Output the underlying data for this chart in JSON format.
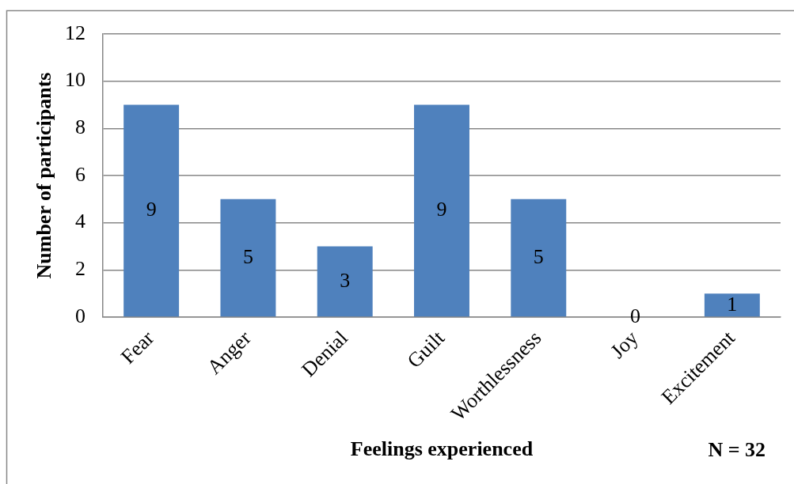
{
  "chart_data": {
    "type": "bar",
    "categories": [
      "Fear",
      "Anger",
      "Denial",
      "Guilt",
      "Worthlessness",
      "Joy",
      "Excitement"
    ],
    "values": [
      9,
      5,
      3,
      9,
      5,
      0,
      1
    ],
    "color": "#4f81bd",
    "xlabel": "Feelings experienced",
    "ylabel": "Number of participants",
    "ylim": [
      0,
      12
    ],
    "yticks": [
      0,
      2,
      4,
      6,
      8,
      10,
      12
    ],
    "grid": "y",
    "data_labels": true,
    "legend": false,
    "annotations": [
      "N = 32"
    ]
  }
}
